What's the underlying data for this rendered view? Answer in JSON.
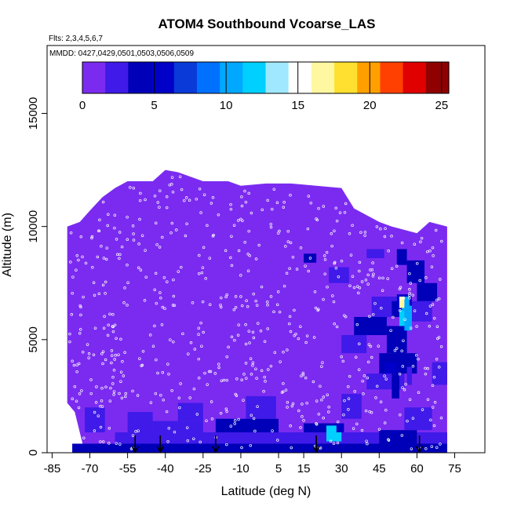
{
  "chart_data": {
    "type": "heatmap",
    "title": "ATOM4 Southbound Vcoarse_LAS",
    "flights_label": "Flts: 2,3,4,5,6,7",
    "dates_label": "MMDD: 0427,0429,0501,0503,0506,0509",
    "xlabel": "Latitude (deg N)",
    "ylabel": "Altitude (m)",
    "xlim": [
      -87,
      87
    ],
    "ylim": [
      0,
      18000
    ],
    "x_ticks": [
      -85,
      -70,
      -55,
      -40,
      -25,
      -10,
      5,
      15,
      30,
      45,
      60,
      75
    ],
    "x_tick_labels": [
      "-85",
      "-70",
      "-55",
      "-40",
      "-25",
      "-10",
      "5",
      "15",
      "30",
      "45",
      "60",
      "75"
    ],
    "y_ticks": [
      0,
      5000,
      10000,
      15000
    ],
    "y_tick_labels": [
      "0",
      "5000",
      "10000",
      "15000"
    ],
    "colorbar": {
      "range": [
        0,
        25.5
      ],
      "ticks": [
        0,
        5,
        10,
        15,
        20,
        25
      ],
      "tick_labels": [
        "0",
        "5",
        "10",
        "15",
        "20",
        "25"
      ],
      "colors": [
        "#7B2BF0",
        "#3F1AE8",
        "#0000B8",
        "#0000C8",
        "#0A3AD8",
        "#0070FF",
        "#00A8FF",
        "#00D0FF",
        "#A0E8FF",
        "#FFFFFF",
        "#FFF8A0",
        "#FFE030",
        "#FFA000",
        "#FF4000",
        "#E00000",
        "#900000"
      ]
    },
    "background_value": 1,
    "coverage_latitude": [
      -79,
      72
    ],
    "coverage_top": [
      [
        -79,
        10000
      ],
      [
        -74,
        10200
      ],
      [
        -70,
        10700
      ],
      [
        -65,
        11300
      ],
      [
        -60,
        11700
      ],
      [
        -55,
        12000
      ],
      [
        -45,
        12000
      ],
      [
        -40,
        12500
      ],
      [
        -35,
        12400
      ],
      [
        -25,
        12000
      ],
      [
        -15,
        12000
      ],
      [
        -10,
        11800
      ],
      [
        0,
        11900
      ],
      [
        10,
        11900
      ],
      [
        20,
        11800
      ],
      [
        30,
        11700
      ],
      [
        35,
        10800
      ],
      [
        45,
        10200
      ],
      [
        50,
        10000
      ],
      [
        60,
        9700
      ],
      [
        65,
        10200
      ],
      [
        72,
        10000
      ]
    ],
    "coverage_bottom": [
      [
        -79,
        2200
      ],
      [
        -76,
        1800
      ],
      [
        -72,
        0
      ],
      [
        72,
        0
      ]
    ],
    "cells": [
      {
        "lat": [
          -77,
          72
        ],
        "alt": [
          0,
          400
        ],
        "v": 4
      },
      {
        "lat": [
          -60,
          72
        ],
        "alt": [
          400,
          900
        ],
        "v": 3
      },
      {
        "lat": [
          -45,
          -25
        ],
        "alt": [
          900,
          1400
        ],
        "v": 3
      },
      {
        "lat": [
          -20,
          5
        ],
        "alt": [
          900,
          1500
        ],
        "v": 3.5
      },
      {
        "lat": [
          -55,
          -45
        ],
        "alt": [
          900,
          1800
        ],
        "v": 2.5
      },
      {
        "lat": [
          -35,
          -25
        ],
        "alt": [
          1400,
          2200
        ],
        "v": 2
      },
      {
        "lat": [
          15,
          28
        ],
        "alt": [
          900,
          1300
        ],
        "v": 4
      },
      {
        "lat": [
          24,
          30
        ],
        "alt": [
          500,
          1200
        ],
        "v": 12
      },
      {
        "lat": [
          28,
          31
        ],
        "alt": [
          900,
          1300
        ],
        "v": 5
      },
      {
        "lat": [
          -72,
          -64
        ],
        "alt": [
          900,
          2000
        ],
        "v": 2
      },
      {
        "lat": [
          45,
          60
        ],
        "alt": [
          400,
          1000
        ],
        "v": 4.5
      },
      {
        "lat": [
          55,
          66
        ],
        "alt": [
          1000,
          2000
        ],
        "v": 2.5
      },
      {
        "lat": [
          30,
          38
        ],
        "alt": [
          1500,
          2600
        ],
        "v": 2
      },
      {
        "lat": [
          -8,
          4
        ],
        "alt": [
          1500,
          2500
        ],
        "v": 2
      },
      {
        "lat": [
          40,
          55
        ],
        "alt": [
          2800,
          3500
        ],
        "v": 2.5
      },
      {
        "lat": [
          45,
          60
        ],
        "alt": [
          3500,
          4400
        ],
        "v": 3.5
      },
      {
        "lat": [
          47,
          52
        ],
        "alt": [
          3500,
          4000
        ],
        "v": 5
      },
      {
        "lat": [
          50,
          53
        ],
        "alt": [
          2400,
          3500
        ],
        "v": 3.5
      },
      {
        "lat": [
          56,
          58
        ],
        "alt": [
          3000,
          3800
        ],
        "v": 3
      },
      {
        "lat": [
          30,
          40
        ],
        "alt": [
          4400,
          5200
        ],
        "v": 2
      },
      {
        "lat": [
          35,
          48
        ],
        "alt": [
          5200,
          6000
        ],
        "v": 3.5
      },
      {
        "lat": [
          48,
          56
        ],
        "alt": [
          4400,
          5600
        ],
        "v": 4
      },
      {
        "lat": [
          42,
          52
        ],
        "alt": [
          6000,
          6900
        ],
        "v": 2.5
      },
      {
        "lat": [
          50,
          58
        ],
        "alt": [
          6000,
          6700
        ],
        "v": 4
      },
      {
        "lat": [
          52,
          58
        ],
        "alt": [
          6200,
          7000
        ],
        "v": 6
      },
      {
        "lat": [
          53,
          56
        ],
        "alt": [
          5600,
          6300
        ],
        "v": 12
      },
      {
        "lat": [
          55,
          58
        ],
        "alt": [
          5400,
          6500
        ],
        "v": 10
      },
      {
        "lat": [
          54,
          57
        ],
        "alt": [
          6300,
          6900
        ],
        "v": 10
      },
      {
        "lat": [
          53,
          55
        ],
        "alt": [
          6400,
          6900
        ],
        "v": 17
      },
      {
        "lat": [
          58,
          66
        ],
        "alt": [
          5800,
          6700
        ],
        "v": 3
      },
      {
        "lat": [
          60,
          68
        ],
        "alt": [
          6700,
          7500
        ],
        "v": 4
      },
      {
        "lat": [
          56,
          63
        ],
        "alt": [
          7500,
          8500
        ],
        "v": 4.5
      },
      {
        "lat": [
          52,
          56
        ],
        "alt": [
          8300,
          9000
        ],
        "v": 3.5
      },
      {
        "lat": [
          25,
          33
        ],
        "alt": [
          7500,
          8200
        ],
        "v": 2
      },
      {
        "lat": [
          15,
          20
        ],
        "alt": [
          8400,
          8800
        ],
        "v": 4
      },
      {
        "lat": [
          40,
          47
        ],
        "alt": [
          8600,
          9000
        ],
        "v": 2.5
      },
      {
        "lat": [
          66,
          72
        ],
        "alt": [
          3000,
          4000
        ],
        "v": 2
      },
      {
        "lat": [
          -35,
          -22
        ],
        "alt": [
          2300,
          3000
        ],
        "v": 1.5
      }
    ],
    "samples_note": "individual sample locations shown as small open circles",
    "arrows_latitude": [
      -52,
      -42,
      -20,
      20,
      61
    ]
  }
}
